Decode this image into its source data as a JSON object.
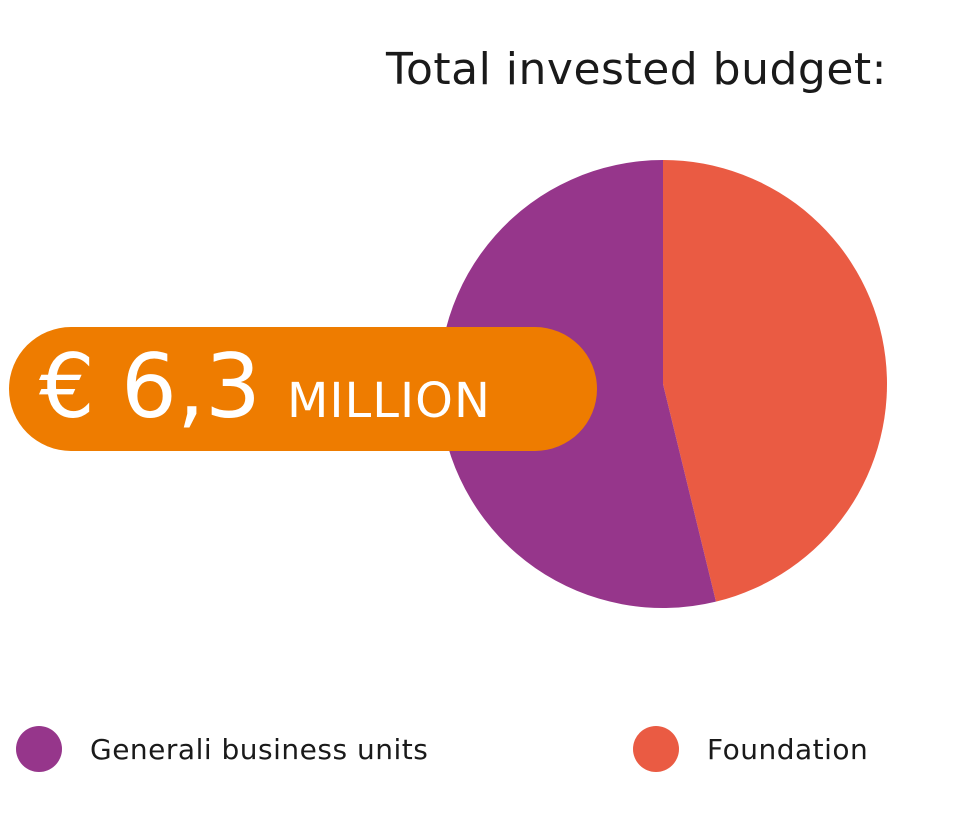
{
  "colors": {
    "generali": "#96368b",
    "foundation": "#ea5b43",
    "badge": "#ee7c00"
  },
  "chart_data": {
    "type": "pie",
    "title": "Total invested budget:",
    "slices": [
      {
        "name": "Foundation",
        "value": 46.2,
        "color": "#ea5b43"
      },
      {
        "name": "Generali business units",
        "value": 53.8,
        "color": "#96368b"
      }
    ],
    "legend": [
      "Generali business units",
      "Foundation"
    ],
    "legend_placement": "bottom"
  },
  "badge": {
    "currency": "€",
    "amount": "6,3",
    "unit": "MILLION"
  }
}
